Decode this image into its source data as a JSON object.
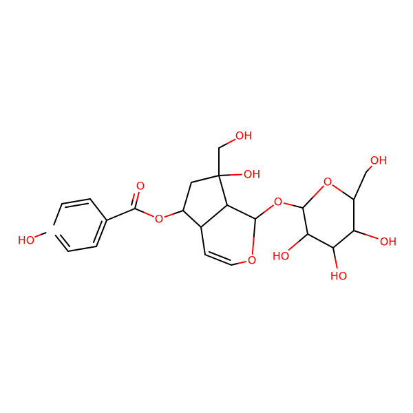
{
  "atoms": [
    "HO",
    "O",
    "O",
    "OH",
    "OH",
    "O",
    "O",
    "O",
    "OH",
    "HO",
    "OH",
    "HO"
  ]
}
